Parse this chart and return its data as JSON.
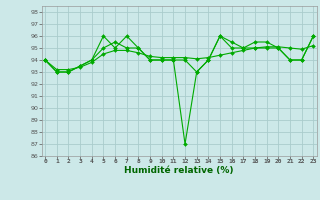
{
  "title": "",
  "xlabel": "Humidité relative (%)",
  "ylabel": "",
  "background_color": "#cce8e8",
  "grid_color": "#aacccc",
  "line_color": "#00aa00",
  "ylim": [
    86,
    98.5
  ],
  "xlim": [
    -0.3,
    23.3
  ],
  "yticks": [
    86,
    87,
    88,
    89,
    90,
    91,
    92,
    93,
    94,
    95,
    96,
    97,
    98
  ],
  "xticks": [
    0,
    1,
    2,
    3,
    4,
    5,
    6,
    7,
    8,
    9,
    10,
    11,
    12,
    13,
    14,
    15,
    16,
    17,
    18,
    19,
    20,
    21,
    22,
    23
  ],
  "series": [
    [
      94.0,
      93.0,
      93.0,
      93.5,
      94.0,
      96.0,
      95.0,
      96.0,
      95.0,
      94.0,
      94.0,
      94.0,
      94.0,
      93.0,
      94.0,
      96.0,
      95.5,
      95.0,
      95.5,
      95.5,
      95.0,
      94.0,
      94.0,
      96.0
    ],
    [
      94.0,
      93.0,
      93.0,
      93.5,
      94.0,
      95.0,
      95.5,
      95.0,
      95.0,
      94.0,
      94.0,
      94.0,
      87.0,
      93.0,
      94.0,
      96.0,
      95.0,
      95.0,
      95.0,
      95.0,
      95.0,
      94.0,
      94.0,
      96.0
    ],
    [
      94.0,
      93.2,
      93.2,
      93.4,
      93.8,
      94.5,
      94.8,
      94.8,
      94.6,
      94.3,
      94.2,
      94.2,
      94.2,
      94.1,
      94.2,
      94.4,
      94.6,
      94.8,
      95.0,
      95.1,
      95.1,
      95.0,
      94.9,
      95.2
    ]
  ]
}
